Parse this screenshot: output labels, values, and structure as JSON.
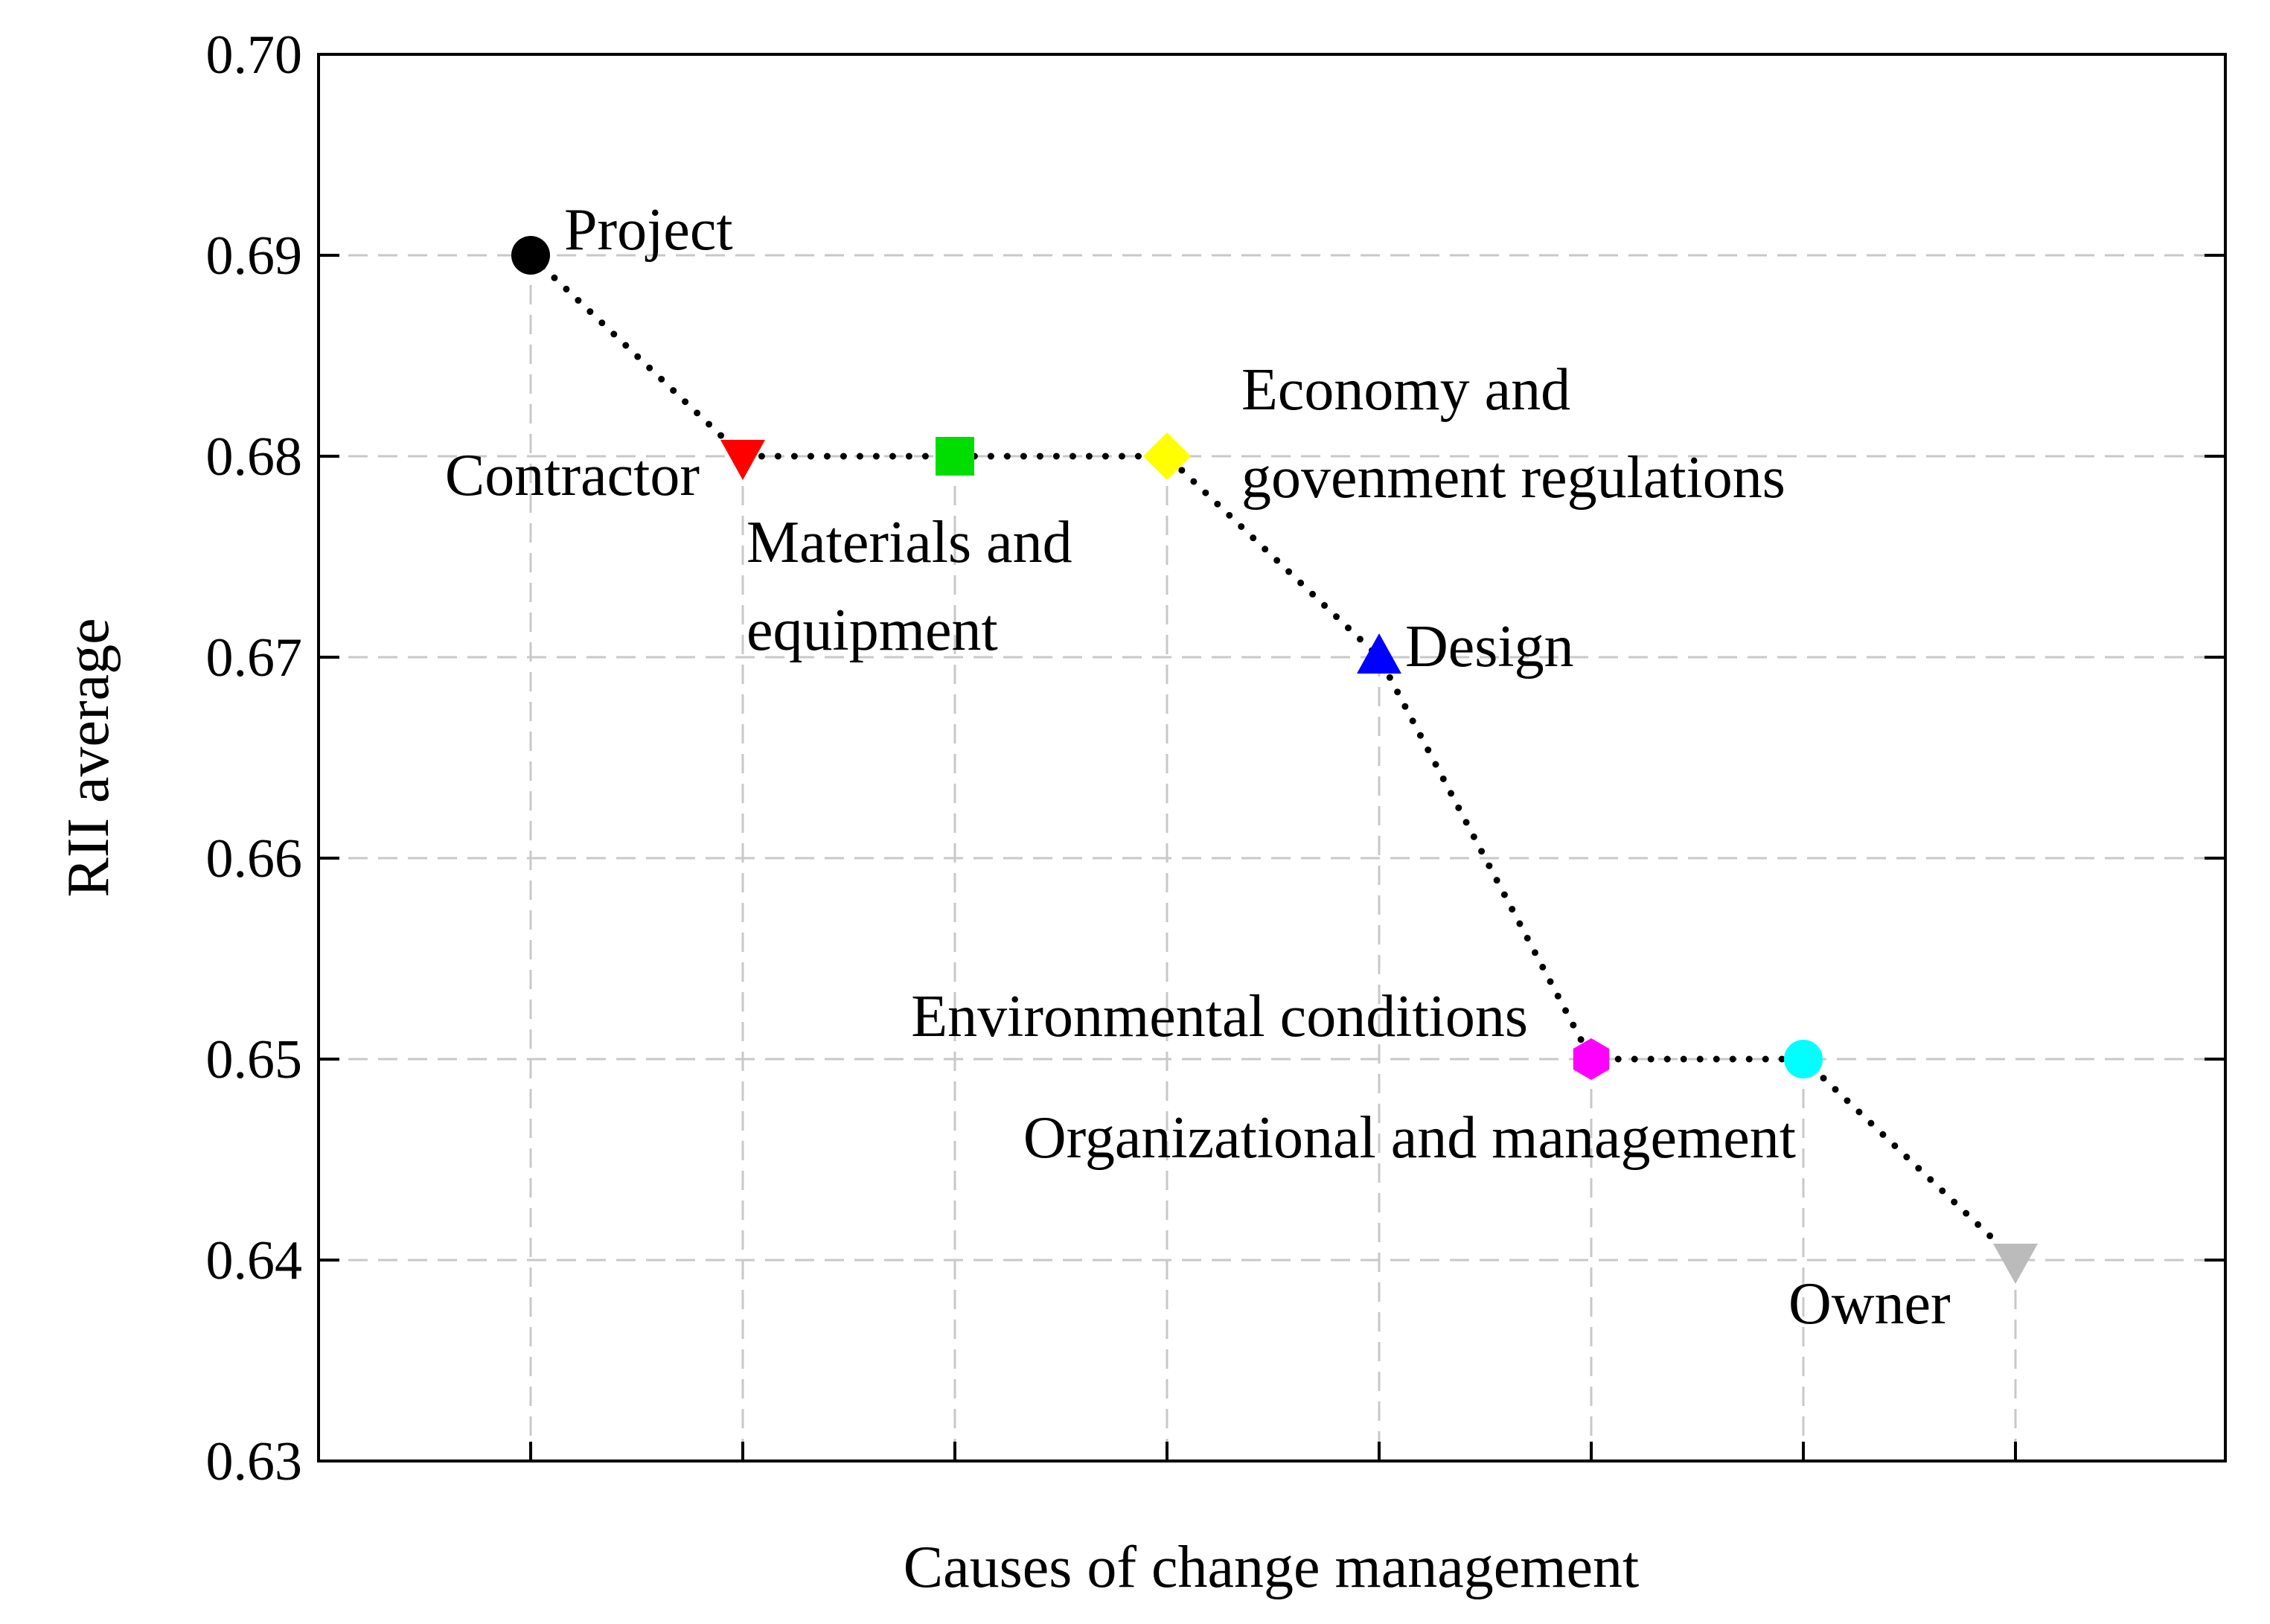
{
  "chart_data": {
    "type": "scatter",
    "title": "",
    "xlabel": "Causes of change management",
    "ylabel": "RII average",
    "ylim": [
      0.63,
      0.7
    ],
    "yticks": [
      "0.63",
      "0.64",
      "0.65",
      "0.66",
      "0.67",
      "0.68",
      "0.69",
      "0.70"
    ],
    "grid": true,
    "connect_points": "dotted",
    "points": [
      {
        "x": 1,
        "y": 0.69,
        "label": [
          "Project"
        ],
        "marker": "circle",
        "color": "#000000"
      },
      {
        "x": 2,
        "y": 0.68,
        "label": [
          "Contractor"
        ],
        "marker": "triangle-down",
        "color": "#ff0000"
      },
      {
        "x": 3,
        "y": 0.68,
        "label": [
          "Materials and",
          "equipment"
        ],
        "marker": "square",
        "color": "#00dd00"
      },
      {
        "x": 4,
        "y": 0.68,
        "label": [
          "Economy and",
          "govenment regulations"
        ],
        "marker": "diamond",
        "color": "#ffff00"
      },
      {
        "x": 5,
        "y": 0.67,
        "label": [
          "Design"
        ],
        "marker": "triangle-up",
        "color": "#0000ff"
      },
      {
        "x": 6,
        "y": 0.65,
        "label": [
          "Environmental conditions"
        ],
        "marker": "hexagon",
        "color": "#ff00ff"
      },
      {
        "x": 7,
        "y": 0.65,
        "label": [
          "Organizational and management"
        ],
        "marker": "circle",
        "color": "#00ffff"
      },
      {
        "x": 8,
        "y": 0.64,
        "label": [
          "Owner"
        ],
        "marker": "triangle-down",
        "color": "#bbbbbb"
      }
    ]
  }
}
